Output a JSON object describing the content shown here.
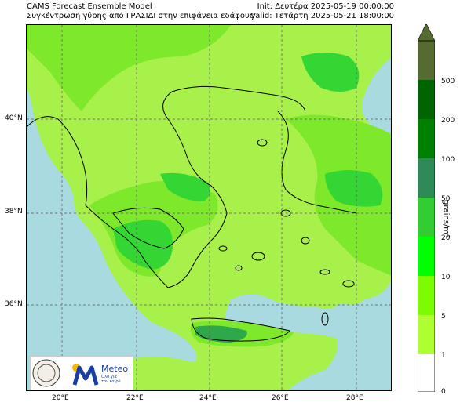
{
  "header": {
    "model": "CAMS Forecast Ensemble Model",
    "subtitle": "Συγκέντρωση γύρης από ΓΡΑΣΙΔΙ στην επιφάνεια εδάφους",
    "init": "Init: Δευτέρα 2025-05-19 00:00:00",
    "valid": "Valid: Τετάρτη 2025-05-21 18:00:00"
  },
  "map": {
    "lat_labels": [
      "40°N",
      "38°N",
      "36°N"
    ],
    "lon_labels": [
      "20°E",
      "22°E",
      "24°E",
      "26°E",
      "28°E"
    ],
    "colors": {
      "sea": "#a8dae0",
      "light_green": "#a8f04a",
      "mid_green": "#7ee82a",
      "bright_green": "#33d633",
      "dark_green": "#2ea84a"
    }
  },
  "colorbar": {
    "ticks": [
      "500",
      "200",
      "100",
      "50",
      "20",
      "10",
      "5",
      "1",
      "0"
    ],
    "unit_label": "grains/m",
    "unit_sup": "3",
    "colors": [
      "#556b2f",
      "#006400",
      "#008000",
      "#2e8b57",
      "#32cd32",
      "#00ff00",
      "#7cfc00",
      "#adff2f",
      "#ffffff"
    ]
  },
  "logos": {
    "brand": "Meteo",
    "tagline1": "Όλα για",
    "tagline2": "τον καιρό"
  }
}
